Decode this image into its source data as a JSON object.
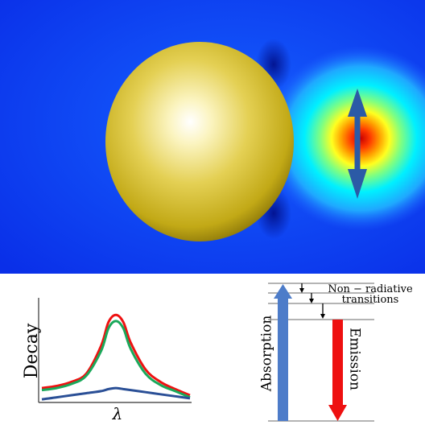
{
  "colors": {
    "field_background": "#0a35f0",
    "sphere_gold": "#c9b21a",
    "dipole_arrow": "#2b5aa6",
    "curve_red": "#ee1111",
    "curve_green": "#1aa85a",
    "curve_blue": "#2a4f96",
    "absorption_arrow": "#4d7cc9",
    "emission_arrow": "#ee1010"
  },
  "decay_plot": {
    "ylabel": "Decay",
    "xlabel": "λ"
  },
  "chart_data": {
    "type": "line",
    "xlabel": "λ",
    "ylabel": "Decay",
    "grid": false,
    "x": [
      0,
      0.1,
      0.2,
      0.3,
      0.4,
      0.45,
      0.5,
      0.55,
      0.6,
      0.7,
      0.8,
      0.9,
      1.0
    ],
    "series": [
      {
        "color": "#ee1111",
        "values": [
          0.14,
          0.16,
          0.2,
          0.28,
          0.55,
          0.78,
          0.85,
          0.78,
          0.58,
          0.32,
          0.2,
          0.13,
          0.07
        ]
      },
      {
        "color": "#1aa85a",
        "values": [
          0.12,
          0.14,
          0.18,
          0.26,
          0.5,
          0.72,
          0.79,
          0.72,
          0.52,
          0.28,
          0.17,
          0.11,
          0.05
        ]
      },
      {
        "color": "#2a4f96",
        "values": [
          0.03,
          0.05,
          0.07,
          0.09,
          0.11,
          0.13,
          0.14,
          0.13,
          0.12,
          0.1,
          0.08,
          0.06,
          0.04
        ]
      }
    ]
  },
  "energy_diagram": {
    "absorption_label": "Absorption",
    "emission_label": "Emission",
    "nonradiative_line1": "Non − radiative",
    "nonradiative_line2": "transitions"
  }
}
